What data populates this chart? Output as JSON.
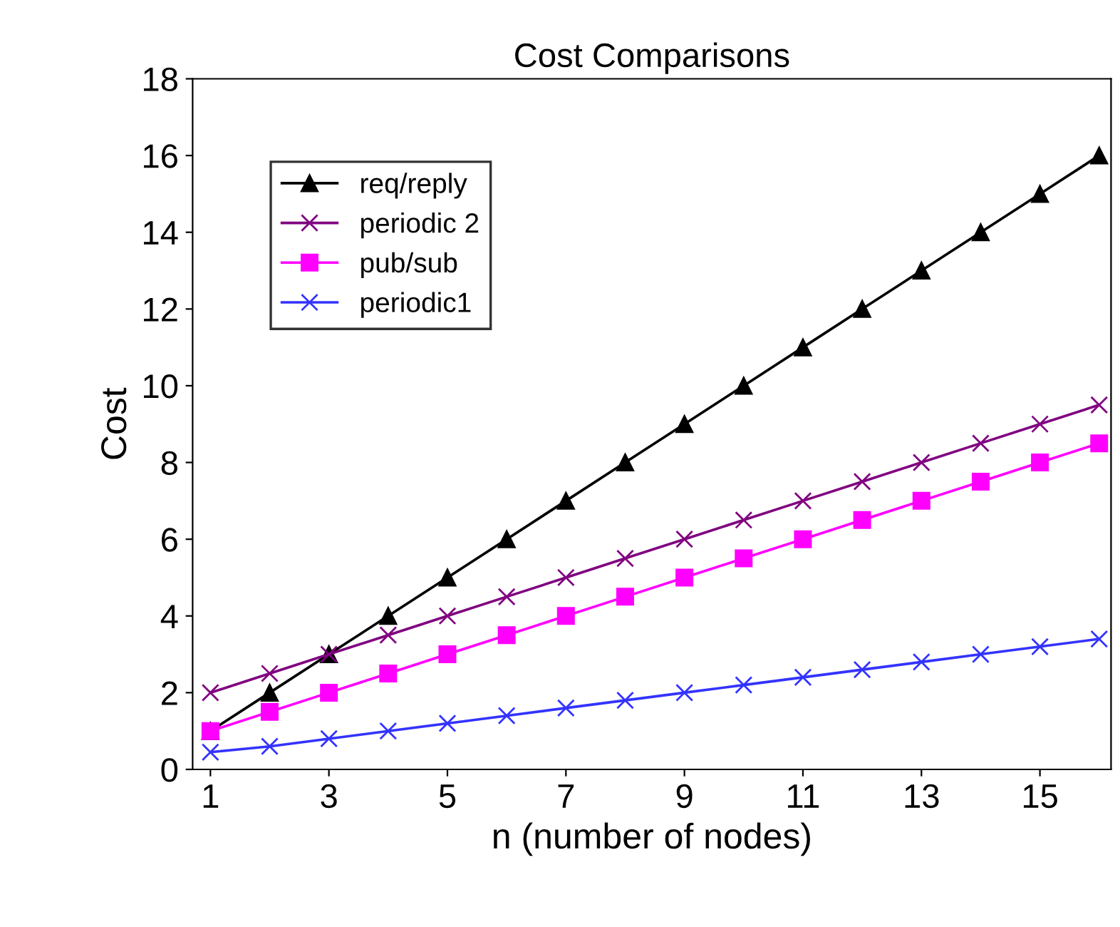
{
  "chart_data": {
    "type": "line",
    "title": "Cost Comparisons",
    "xlabel": "n (number of nodes)",
    "ylabel": "Cost",
    "x": [
      1,
      2,
      3,
      4,
      5,
      6,
      7,
      8,
      9,
      10,
      11,
      12,
      13,
      14,
      15,
      16
    ],
    "series": [
      {
        "name": "req/reply",
        "color": "#000000",
        "marker": "triangle",
        "values": [
          1,
          2,
          3,
          4,
          5,
          6,
          7,
          8,
          9,
          10,
          11,
          12,
          13,
          14,
          15,
          16
        ]
      },
      {
        "name": "periodic 2",
        "color": "#800080",
        "marker": "cross",
        "values": [
          2,
          2.5,
          3,
          3.5,
          4,
          4.5,
          5,
          5.5,
          6,
          6.5,
          7,
          7.5,
          8,
          8.5,
          9,
          9.5
        ]
      },
      {
        "name": "pub/sub",
        "color": "#ff00ff",
        "marker": "square",
        "values": [
          1,
          1.5,
          2,
          2.5,
          3,
          3.5,
          4,
          4.5,
          5,
          5.5,
          6,
          6.5,
          7,
          7.5,
          8,
          8.5
        ]
      },
      {
        "name": "periodic1",
        "color": "#3333ff",
        "marker": "cross",
        "values": [
          0.45,
          0.6,
          0.8,
          1,
          1.2,
          1.4,
          1.6,
          1.8,
          2,
          2.2,
          2.4,
          2.6,
          2.8,
          3,
          3.2,
          3.4
        ]
      }
    ],
    "xlim": [
      0.7,
      16.2
    ],
    "xticks": [
      1,
      3,
      5,
      7,
      9,
      11,
      13,
      15
    ],
    "ylim": [
      0,
      18
    ],
    "yticks": [
      0,
      2,
      4,
      6,
      8,
      10,
      12,
      14,
      16,
      18
    ],
    "grid": false,
    "legend": "top left",
    "line_style": "solid"
  }
}
